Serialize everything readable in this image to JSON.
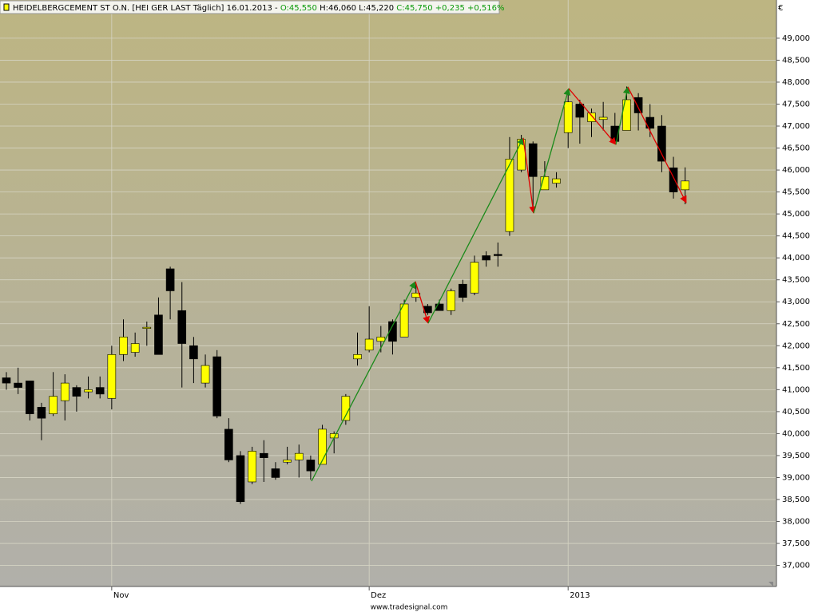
{
  "header": {
    "label": "HEIDELBERGCEMENT ST O.N. [HEI GER LAST Täglich] 16.01.2013 -",
    "open_text": "O:45,550",
    "hl_text": "H:46,060 L:45,220",
    "close_text": "C:45,750 +0,235 +0,516%"
  },
  "currency": "€",
  "footer": "www.tradesignal.com",
  "chart_data": {
    "type": "candlestick",
    "categories": [
      null,
      null,
      null,
      null,
      null,
      null,
      null,
      null,
      null,
      "Nov",
      null,
      null,
      null,
      null,
      null,
      null,
      null,
      null,
      null,
      null,
      null,
      null,
      null,
      null,
      null,
      null,
      null,
      null,
      null,
      null,
      null,
      "Dez",
      null,
      null,
      null,
      null,
      null,
      null,
      null,
      null,
      null,
      null,
      null,
      null,
      null,
      null,
      null,
      null,
      "2013",
      null,
      null,
      null,
      null,
      null,
      null,
      null,
      null,
      null,
      null
    ],
    "open": [
      41.27,
      41.15,
      41.2,
      40.6,
      40.45,
      40.75,
      41.05,
      40.95,
      41.05,
      40.8,
      41.8,
      41.85,
      42.4,
      42.7,
      43.75,
      42.8,
      42.0,
      41.15,
      41.75,
      40.1,
      39.5,
      38.9,
      39.55,
      39.2,
      39.35,
      39.4,
      39.4,
      39.3,
      39.9,
      40.3,
      41.7,
      41.9,
      42.1,
      42.55,
      42.2,
      43.1,
      42.9,
      42.95,
      42.8,
      43.4,
      43.2,
      44.05,
      44.08,
      44.6,
      46.0,
      46.6,
      45.55,
      45.7,
      46.85,
      47.5,
      47.1,
      47.15,
      47.0,
      46.9,
      47.65,
      47.2,
      47.0,
      46.05,
      45.55
    ],
    "high": [
      41.4,
      41.5,
      41.2,
      40.7,
      41.4,
      41.35,
      41.1,
      41.3,
      41.3,
      42.0,
      42.6,
      42.3,
      42.55,
      43.1,
      43.8,
      43.45,
      42.2,
      41.8,
      41.9,
      40.35,
      39.6,
      39.7,
      39.85,
      39.35,
      39.7,
      39.75,
      39.5,
      40.2,
      40.05,
      40.9,
      42.3,
      42.9,
      42.45,
      42.6,
      43.05,
      43.4,
      42.95,
      43.05,
      43.3,
      43.5,
      44.05,
      44.15,
      44.35,
      46.75,
      46.8,
      46.65,
      46.2,
      45.95,
      47.75,
      47.6,
      47.4,
      47.55,
      47.3,
      47.9,
      47.75,
      47.5,
      47.25,
      46.3,
      46.06
    ],
    "low": [
      41.0,
      40.9,
      40.3,
      39.85,
      40.4,
      40.3,
      40.5,
      40.8,
      40.8,
      40.55,
      41.65,
      41.75,
      42.0,
      41.8,
      42.6,
      41.05,
      41.15,
      41.05,
      40.35,
      39.35,
      38.4,
      38.85,
      38.9,
      38.95,
      39.3,
      39.0,
      38.95,
      39.3,
      39.55,
      40.2,
      41.55,
      41.85,
      41.85,
      41.8,
      42.2,
      43.0,
      42.7,
      42.8,
      42.7,
      43.0,
      43.15,
      43.8,
      43.8,
      44.5,
      45.95,
      45.05,
      45.55,
      45.6,
      46.5,
      46.6,
      46.75,
      46.9,
      46.6,
      46.9,
      46.9,
      46.75,
      45.95,
      45.35,
      45.22
    ],
    "close": [
      41.15,
      41.05,
      40.45,
      40.35,
      40.85,
      41.15,
      40.85,
      41.0,
      40.9,
      41.8,
      42.2,
      42.05,
      42.42,
      41.8,
      43.25,
      42.05,
      41.7,
      41.55,
      40.4,
      39.4,
      38.45,
      39.6,
      39.45,
      39.0,
      39.4,
      39.55,
      39.15,
      40.1,
      40.0,
      40.85,
      41.8,
      42.15,
      42.2,
      42.1,
      42.95,
      43.2,
      42.75,
      42.8,
      43.25,
      43.1,
      43.9,
      43.95,
      44.05,
      46.25,
      46.7,
      45.85,
      45.85,
      45.8,
      47.55,
      47.2,
      47.3,
      47.2,
      46.65,
      47.6,
      47.3,
      46.95,
      46.2,
      45.5,
      45.75
    ],
    "up_color": "#ffff00",
    "down_color": "#000000",
    "ylim": [
      36.52,
      49.87
    ],
    "yticks": [
      {
        "value": 37,
        "label": "37,000"
      },
      {
        "value": 37.5,
        "label": "37,500"
      },
      {
        "value": 38,
        "label": "38,000"
      },
      {
        "value": 38.5,
        "label": "38,500"
      },
      {
        "value": 39,
        "label": "39,000"
      },
      {
        "value": 39.5,
        "label": "39,500"
      },
      {
        "value": 40,
        "label": "40,000"
      },
      {
        "value": 40.5,
        "label": "40,500"
      },
      {
        "value": 41,
        "label": "41,000"
      },
      {
        "value": 41.5,
        "label": "41,500"
      },
      {
        "value": 42,
        "label": "42,000"
      },
      {
        "value": 42.5,
        "label": "42,500"
      },
      {
        "value": 43,
        "label": "43,000"
      },
      {
        "value": 43.5,
        "label": "43,500"
      },
      {
        "value": 44,
        "label": "44,000"
      },
      {
        "value": 44.5,
        "label": "44,500"
      },
      {
        "value": 45,
        "label": "45,000"
      },
      {
        "value": 45.5,
        "label": "45,500"
      },
      {
        "value": 46,
        "label": "46,000"
      },
      {
        "value": 46.5,
        "label": "46,500"
      },
      {
        "value": 47,
        "label": "47,000"
      },
      {
        "value": 47.5,
        "label": "47,500"
      },
      {
        "value": 48,
        "label": "48,000"
      },
      {
        "value": 48.5,
        "label": "48,500"
      },
      {
        "value": 49,
        "label": "49,000"
      }
    ],
    "grid": true
  }
}
